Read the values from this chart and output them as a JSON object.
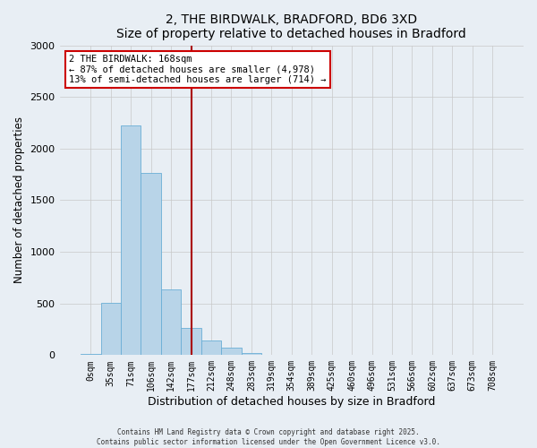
{
  "title": "2, THE BIRDWALK, BRADFORD, BD6 3XD",
  "subtitle": "Size of property relative to detached houses in Bradford",
  "xlabel": "Distribution of detached houses by size in Bradford",
  "ylabel": "Number of detached properties",
  "bar_labels": [
    "0sqm",
    "35sqm",
    "71sqm",
    "106sqm",
    "142sqm",
    "177sqm",
    "212sqm",
    "248sqm",
    "283sqm",
    "319sqm",
    "354sqm",
    "389sqm",
    "425sqm",
    "460sqm",
    "496sqm",
    "531sqm",
    "566sqm",
    "602sqm",
    "637sqm",
    "673sqm",
    "708sqm"
  ],
  "bar_values": [
    15,
    510,
    2220,
    1760,
    635,
    265,
    140,
    70,
    20,
    5,
    2,
    0,
    0,
    0,
    0,
    0,
    0,
    0,
    0,
    0,
    0
  ],
  "bar_color": "#b8d4e8",
  "bar_edge_color": "#6aaed6",
  "vline_x": 5,
  "vline_color": "#aa0000",
  "annotation_title": "2 THE BIRDWALK: 168sqm",
  "annotation_line1": "← 87% of detached houses are smaller (4,978)",
  "annotation_line2": "13% of semi-detached houses are larger (714) →",
  "annotation_box_color": "#cc0000",
  "ylim": [
    0,
    3000
  ],
  "yticks": [
    0,
    500,
    1000,
    1500,
    2000,
    2500,
    3000
  ],
  "footnote1": "Contains HM Land Registry data © Crown copyright and database right 2025.",
  "footnote2": "Contains public sector information licensed under the Open Government Licence v3.0.",
  "background_color": "#e8eef4",
  "plot_bg_color": "#e8eef4"
}
